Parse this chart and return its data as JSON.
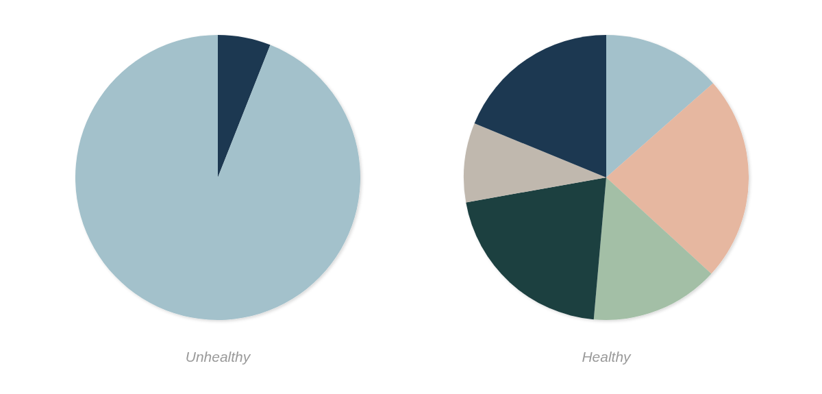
{
  "chart_data": [
    {
      "type": "pie",
      "title": "Unhealthy",
      "categories": [
        null,
        null
      ],
      "values": [
        6,
        94
      ],
      "colors": [
        "#1c3851",
        "#a3c1cb"
      ]
    },
    {
      "type": "pie",
      "title": "Healthy",
      "categories": [
        null,
        null,
        null,
        null,
        null,
        null
      ],
      "values": [
        13.5,
        23.3,
        14.6,
        20.8,
        9,
        18.8
      ],
      "colors": [
        "#a3c1cb",
        "#e6b7a0",
        "#a3bfa6",
        "#1b3f41",
        "#c0b8ae",
        "#1c3851"
      ]
    }
  ]
}
